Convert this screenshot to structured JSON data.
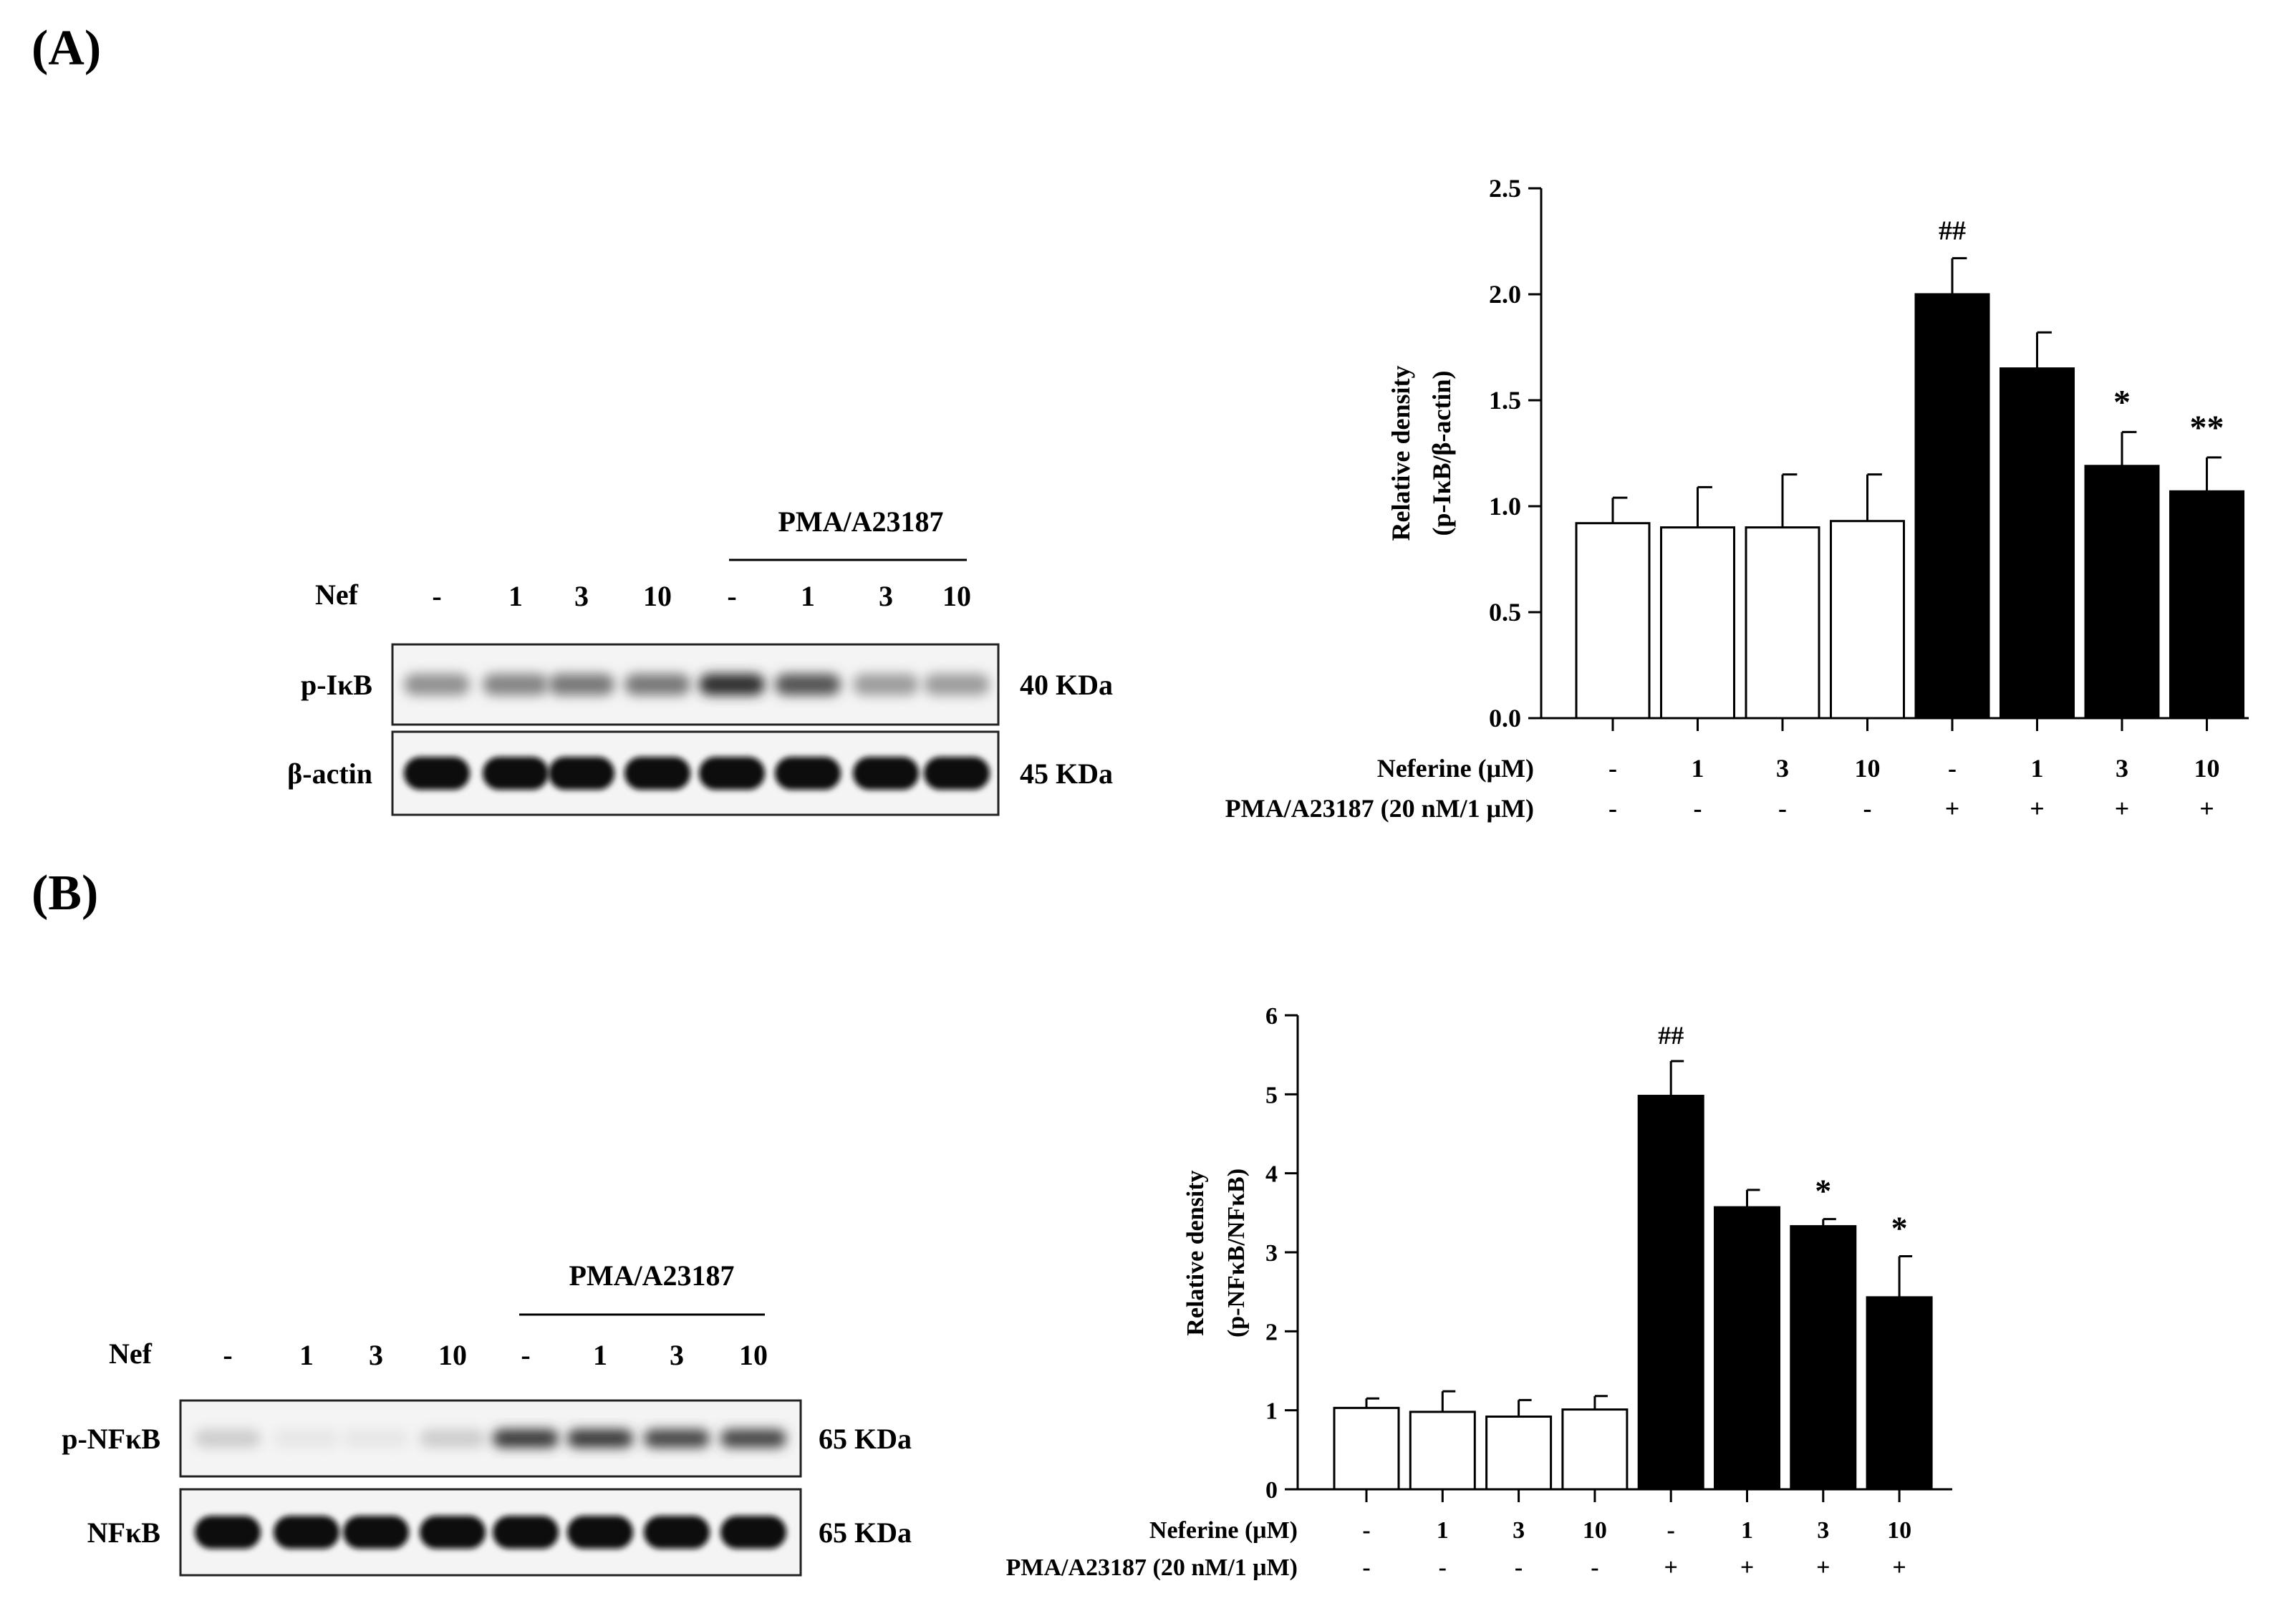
{
  "panels": [
    {
      "label": "(A)",
      "blot": {
        "group_title": "PMA/A23187",
        "lane_header": "Nef",
        "lanes": [
          "-",
          "1",
          "3",
          "10",
          "-",
          "1",
          "3",
          "10"
        ],
        "rows": [
          {
            "name": "p-IκB",
            "size": "40 KDa",
            "intensities": [
              0.45,
              0.5,
              0.55,
              0.55,
              0.85,
              0.7,
              0.4,
              0.4
            ]
          },
          {
            "name": "β-actin",
            "size": "45 KDa",
            "intensities": [
              1,
              1,
              1,
              1,
              1,
              1,
              1,
              1
            ]
          }
        ]
      }
    },
    {
      "label": "(B)",
      "blot": {
        "group_title": "PMA/A23187",
        "lane_header": "Nef",
        "lanes": [
          "-",
          "1",
          "3",
          "10",
          "-",
          "1",
          "3",
          "10"
        ],
        "rows": [
          {
            "name": "p-NFκB",
            "size": "65 KDa",
            "intensities": [
              0.2,
              0.1,
              0.1,
              0.2,
              0.8,
              0.8,
              0.75,
              0.75
            ]
          },
          {
            "name": "NFκB",
            "size": "65 KDa",
            "intensities": [
              1,
              1,
              1,
              1,
              1,
              1,
              1,
              1
            ]
          }
        ]
      }
    }
  ],
  "colors": {
    "control_bar": "#ffffff",
    "treated_bar": "#000000",
    "ink": "#000000"
  },
  "chart_data": [
    {
      "type": "bar",
      "ylabel": [
        "Relative density",
        "(p-IκB/β-actin)"
      ],
      "ylim": [
        0,
        2.5
      ],
      "yticks": [
        "0.0",
        "0.5",
        "1.0",
        "1.5",
        "2.0",
        "2.5"
      ],
      "categories": [
        "-",
        "1",
        "3",
        "10",
        "-",
        "1",
        "3",
        "10"
      ],
      "row1_label": "Neferine (μM)",
      "row2_label": "PMA/A23187 (20 nM/1 μM)",
      "row2": [
        "-",
        "-",
        "-",
        "-",
        "+",
        "+",
        "+",
        "+"
      ],
      "values": [
        0.92,
        0.9,
        0.9,
        0.93,
        2.0,
        1.65,
        1.19,
        1.07
      ],
      "errors": [
        0.12,
        0.19,
        0.25,
        0.22,
        0.17,
        0.17,
        0.16,
        0.16
      ],
      "filled": [
        false,
        false,
        false,
        false,
        true,
        true,
        true,
        true
      ],
      "annotations": [
        "",
        "",
        "",
        "",
        "##",
        "",
        "*",
        "**"
      ]
    },
    {
      "type": "bar",
      "ylabel": [
        "Relative density",
        "(p-NFκB/NFκB)"
      ],
      "ylim": [
        0,
        6
      ],
      "yticks": [
        "0",
        "1",
        "2",
        "3",
        "4",
        "5",
        "6"
      ],
      "categories": [
        "-",
        "1",
        "3",
        "10",
        "-",
        "1",
        "3",
        "10"
      ],
      "row1_label": "Neferine (μM)",
      "row2_label": "PMA/A23187 (20 nM/1 μM)",
      "row2": [
        "-",
        "-",
        "-",
        "-",
        "+",
        "+",
        "+",
        "+"
      ],
      "values": [
        1.03,
        0.98,
        0.92,
        1.01,
        4.98,
        3.57,
        3.33,
        2.43
      ],
      "errors": [
        0.12,
        0.26,
        0.21,
        0.17,
        0.44,
        0.22,
        0.09,
        0.52
      ],
      "filled": [
        false,
        false,
        false,
        false,
        true,
        true,
        true,
        true
      ],
      "annotations": [
        "",
        "",
        "",
        "",
        "##",
        "",
        "*",
        "*"
      ]
    }
  ]
}
